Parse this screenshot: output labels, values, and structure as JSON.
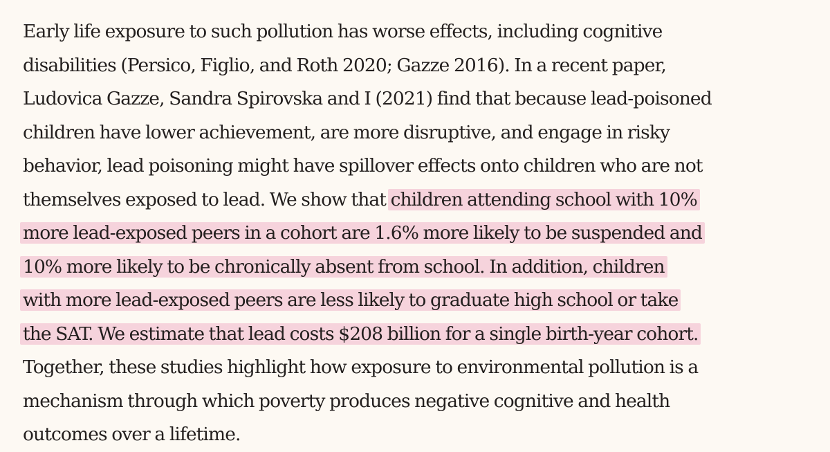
{
  "document": {
    "lines": [
      {
        "before": "Early life exposure to such pollution has worse effects, including cognitive",
        "highlight": ""
      },
      {
        "before": "disabilities (Persico, Figlio, and Roth 2020; Gazze 2016). In a recent paper,",
        "highlight": ""
      },
      {
        "before": "Ludovica Gazze, Sandra Spirovska and I (2021) find that because lead-poisoned",
        "highlight": ""
      },
      {
        "before": "children have lower achievement, are more disruptive, and engage in risky",
        "highlight": ""
      },
      {
        "before": "behavior, lead poisoning might have spillover effects onto children who are not",
        "highlight": ""
      },
      {
        "before": "themselves exposed to lead. We show that ",
        "highlight": "children attending school with 10%"
      },
      {
        "before": "",
        "highlight": "more lead-exposed peers in a cohort are 1.6% more likely to be suspended and"
      },
      {
        "before": "",
        "highlight": "10% more likely to be chronically absent from school. In addition, children"
      },
      {
        "before": "",
        "highlight": "with more lead-exposed peers are less likely to graduate high school or take"
      },
      {
        "before": "",
        "highlight": "the SAT. We estimate that lead costs $208 billion for a single birth-year cohort."
      },
      {
        "before": "Together, these studies highlight how exposure to environmental pollution is a",
        "highlight": ""
      },
      {
        "before": "mechanism through which poverty produces negative cognitive and health",
        "highlight": ""
      },
      {
        "before": "outcomes over a lifetime.",
        "highlight": ""
      }
    ]
  },
  "colors": {
    "background": "#fdf9f3",
    "text": "#231f1e",
    "highlight": "#f6d3dc"
  }
}
